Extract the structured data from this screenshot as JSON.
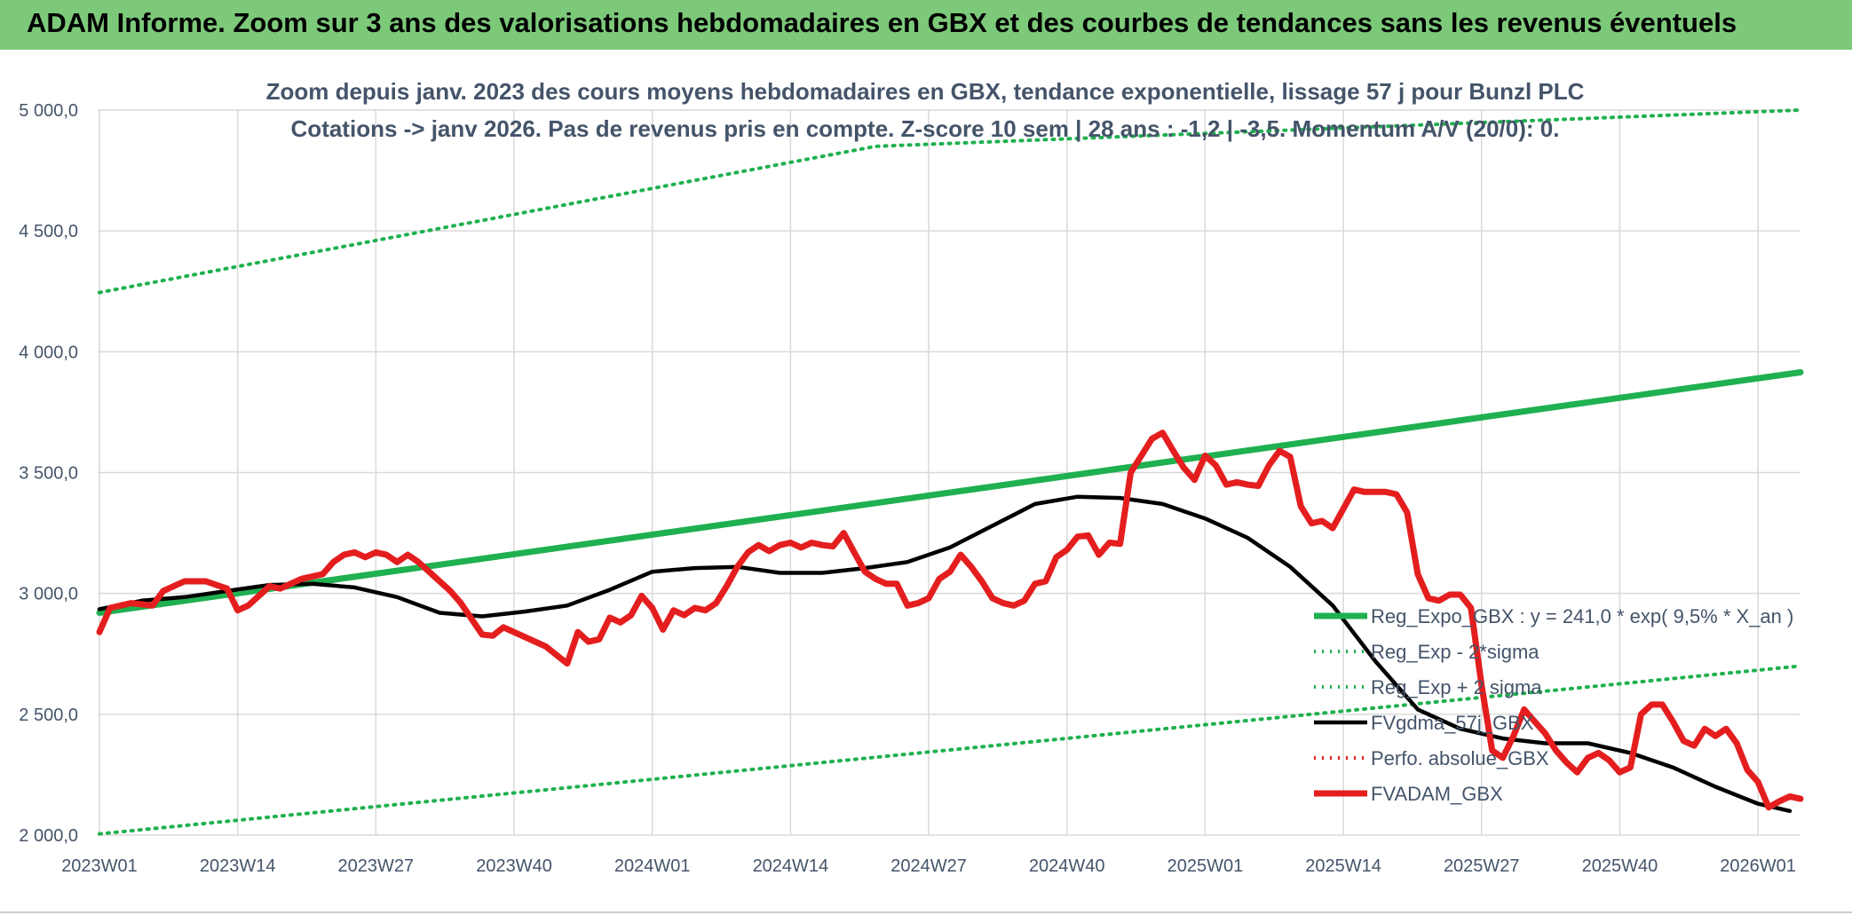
{
  "banner": {
    "title": "ADAM Informe. Zoom sur 3 ans des valorisations hebdomadaires en GBX et des courbes de tendances sans les revenus éventuels"
  },
  "colors": {
    "banner_bg": "#7dc97a",
    "trend": "#1fb04f",
    "band": "#1fb04f",
    "ma": "#000000",
    "price": "#e41e1e",
    "text": "#44546a",
    "grid": "#d9d9d9"
  },
  "chart_data": {
    "type": "line",
    "title": "Zoom depuis janv. 2023 des cours moyens hebdomadaires en GBX, tendance exponentielle, lissage 57 j pour Bunzl PLC",
    "subtitle": "Cotations -> janv 2026. Pas de revenus pris en compte. Z-score 10 sem | 28 ans : -1,2 | -3,5. Momentum A/V (20/0): 0.",
    "ylim": [
      2000,
      5000
    ],
    "grid": true,
    "legend_position": "right",
    "y_ticks": [
      "2 000,0",
      "2 500,0",
      "3 000,0",
      "3 500,0",
      "4 000,0",
      "4 500,0",
      "5 000,0"
    ],
    "y_tick_values": [
      2000,
      2500,
      3000,
      3500,
      4000,
      4500,
      5000
    ],
    "x_ticks": [
      "2023W01",
      "2023W14",
      "2023W27",
      "2023W40",
      "2024W01",
      "2024W14",
      "2024W27",
      "2024W40",
      "2025W01",
      "2025W14",
      "2025W27",
      "2025W40",
      "2026W01"
    ],
    "x_tick_weeks": [
      0,
      13,
      26,
      39,
      52,
      65,
      78,
      91,
      104,
      117,
      130,
      143,
      156
    ],
    "series": [
      {
        "name": "Reg_Expo_GBX : y = 241,0 * exp( 9,5% *  X_an )",
        "style": "thick-solid",
        "color": "#1fb04f",
        "points": [
          [
            0,
            2920
          ],
          [
            160,
            3915
          ]
        ]
      },
      {
        "name": "Reg_Exp - 2*sigma",
        "style": "dotted",
        "color": "#1fb04f",
        "points": [
          [
            0,
            2005
          ],
          [
            160,
            2700
          ]
        ]
      },
      {
        "name": "Reg_Exp + 2 sigma",
        "style": "dotted",
        "color": "#1fb04f",
        "points": [
          [
            0,
            4245
          ],
          [
            73,
            4850
          ],
          [
            160,
            5000
          ]
        ]
      },
      {
        "name": "FVgdma_57j_GBX",
        "style": "solid",
        "color": "#000000",
        "points": [
          [
            0,
            2935
          ],
          [
            4,
            2970
          ],
          [
            8,
            2985
          ],
          [
            12,
            3010
          ],
          [
            16,
            3035
          ],
          [
            20,
            3040
          ],
          [
            24,
            3025
          ],
          [
            28,
            2985
          ],
          [
            32,
            2920
          ],
          [
            36,
            2905
          ],
          [
            40,
            2925
          ],
          [
            44,
            2950
          ],
          [
            48,
            3015
          ],
          [
            52,
            3090
          ],
          [
            56,
            3105
          ],
          [
            60,
            3110
          ],
          [
            64,
            3085
          ],
          [
            68,
            3085
          ],
          [
            72,
            3105
          ],
          [
            76,
            3130
          ],
          [
            80,
            3190
          ],
          [
            84,
            3280
          ],
          [
            88,
            3370
          ],
          [
            92,
            3400
          ],
          [
            96,
            3395
          ],
          [
            100,
            3370
          ],
          [
            104,
            3310
          ],
          [
            108,
            3230
          ],
          [
            112,
            3110
          ],
          [
            116,
            2950
          ],
          [
            120,
            2720
          ],
          [
            124,
            2520
          ],
          [
            128,
            2440
          ],
          [
            132,
            2400
          ],
          [
            136,
            2380
          ],
          [
            140,
            2380
          ],
          [
            144,
            2340
          ],
          [
            148,
            2280
          ],
          [
            152,
            2200
          ],
          [
            156,
            2130
          ],
          [
            159,
            2100
          ]
        ]
      },
      {
        "name": "Perfo. absolue_GBX",
        "style": "dotted",
        "color": "#e41e1e",
        "points": []
      },
      {
        "name": "FVADAM_GBX",
        "style": "thick-solid",
        "color": "#e41e1e",
        "points": [
          [
            0,
            2840
          ],
          [
            1,
            2940
          ],
          [
            3,
            2960
          ],
          [
            5,
            2950
          ],
          [
            6,
            3010
          ],
          [
            8,
            3050
          ],
          [
            10,
            3050
          ],
          [
            12,
            3020
          ],
          [
            13,
            2930
          ],
          [
            14,
            2950
          ],
          [
            16,
            3030
          ],
          [
            17,
            3020
          ],
          [
            19,
            3060
          ],
          [
            21,
            3080
          ],
          [
            22,
            3130
          ],
          [
            23,
            3160
          ],
          [
            24,
            3170
          ],
          [
            25,
            3150
          ],
          [
            26,
            3170
          ],
          [
            27,
            3160
          ],
          [
            28,
            3130
          ],
          [
            29,
            3160
          ],
          [
            30,
            3130
          ],
          [
            32,
            3050
          ],
          [
            33,
            3010
          ],
          [
            34,
            2960
          ],
          [
            36,
            2830
          ],
          [
            37,
            2825
          ],
          [
            38,
            2860
          ],
          [
            40,
            2820
          ],
          [
            42,
            2780
          ],
          [
            44,
            2710
          ],
          [
            45,
            2840
          ],
          [
            46,
            2800
          ],
          [
            47,
            2810
          ],
          [
            48,
            2900
          ],
          [
            49,
            2880
          ],
          [
            50,
            2910
          ],
          [
            51,
            2990
          ],
          [
            52,
            2940
          ],
          [
            53,
            2850
          ],
          [
            54,
            2930
          ],
          [
            55,
            2910
          ],
          [
            56,
            2940
          ],
          [
            57,
            2930
          ],
          [
            58,
            2960
          ],
          [
            59,
            3030
          ],
          [
            60,
            3110
          ],
          [
            61,
            3170
          ],
          [
            62,
            3200
          ],
          [
            63,
            3175
          ],
          [
            64,
            3200
          ],
          [
            65,
            3210
          ],
          [
            66,
            3190
          ],
          [
            67,
            3210
          ],
          [
            68,
            3200
          ],
          [
            69,
            3195
          ],
          [
            70,
            3250
          ],
          [
            71,
            3170
          ],
          [
            72,
            3090
          ],
          [
            73,
            3060
          ],
          [
            74,
            3040
          ],
          [
            75,
            3040
          ],
          [
            76,
            2950
          ],
          [
            77,
            2960
          ],
          [
            78,
            2980
          ],
          [
            79,
            3060
          ],
          [
            80,
            3090
          ],
          [
            81,
            3160
          ],
          [
            82,
            3110
          ],
          [
            83,
            3050
          ],
          [
            84,
            2980
          ],
          [
            85,
            2960
          ],
          [
            86,
            2950
          ],
          [
            87,
            2970
          ],
          [
            88,
            3040
          ],
          [
            89,
            3050
          ],
          [
            90,
            3150
          ],
          [
            91,
            3180
          ],
          [
            92,
            3235
          ],
          [
            93,
            3240
          ],
          [
            94,
            3160
          ],
          [
            95,
            3210
          ],
          [
            96,
            3205
          ],
          [
            97,
            3500
          ],
          [
            98,
            3570
          ],
          [
            99,
            3640
          ],
          [
            100,
            3665
          ],
          [
            101,
            3590
          ],
          [
            102,
            3520
          ],
          [
            103,
            3470
          ],
          [
            104,
            3570
          ],
          [
            105,
            3530
          ],
          [
            106,
            3450
          ],
          [
            107,
            3460
          ],
          [
            108,
            3450
          ],
          [
            109,
            3445
          ],
          [
            110,
            3530
          ],
          [
            111,
            3590
          ],
          [
            112,
            3565
          ],
          [
            113,
            3360
          ],
          [
            114,
            3290
          ],
          [
            115,
            3300
          ],
          [
            116,
            3270
          ],
          [
            117,
            3350
          ],
          [
            118,
            3430
          ],
          [
            119,
            3420
          ],
          [
            120,
            3420
          ],
          [
            121,
            3420
          ],
          [
            122,
            3410
          ],
          [
            123,
            3335
          ],
          [
            124,
            3080
          ],
          [
            125,
            2980
          ],
          [
            126,
            2970
          ],
          [
            127,
            2995
          ],
          [
            128,
            2995
          ],
          [
            129,
            2940
          ],
          [
            130,
            2620
          ],
          [
            131,
            2350
          ],
          [
            132,
            2320
          ],
          [
            133,
            2410
          ],
          [
            134,
            2520
          ],
          [
            135,
            2470
          ],
          [
            136,
            2420
          ],
          [
            137,
            2350
          ],
          [
            138,
            2300
          ],
          [
            139,
            2260
          ],
          [
            140,
            2320
          ],
          [
            141,
            2340
          ],
          [
            142,
            2310
          ],
          [
            143,
            2260
          ],
          [
            144,
            2280
          ],
          [
            145,
            2500
          ],
          [
            146,
            2540
          ],
          [
            147,
            2540
          ],
          [
            148,
            2470
          ],
          [
            149,
            2390
          ],
          [
            150,
            2370
          ],
          [
            151,
            2440
          ],
          [
            152,
            2410
          ],
          [
            153,
            2440
          ],
          [
            154,
            2380
          ],
          [
            155,
            2270
          ],
          [
            156,
            2220
          ],
          [
            157,
            2115
          ],
          [
            158,
            2140
          ],
          [
            159,
            2160
          ],
          [
            160,
            2150
          ]
        ]
      }
    ]
  }
}
